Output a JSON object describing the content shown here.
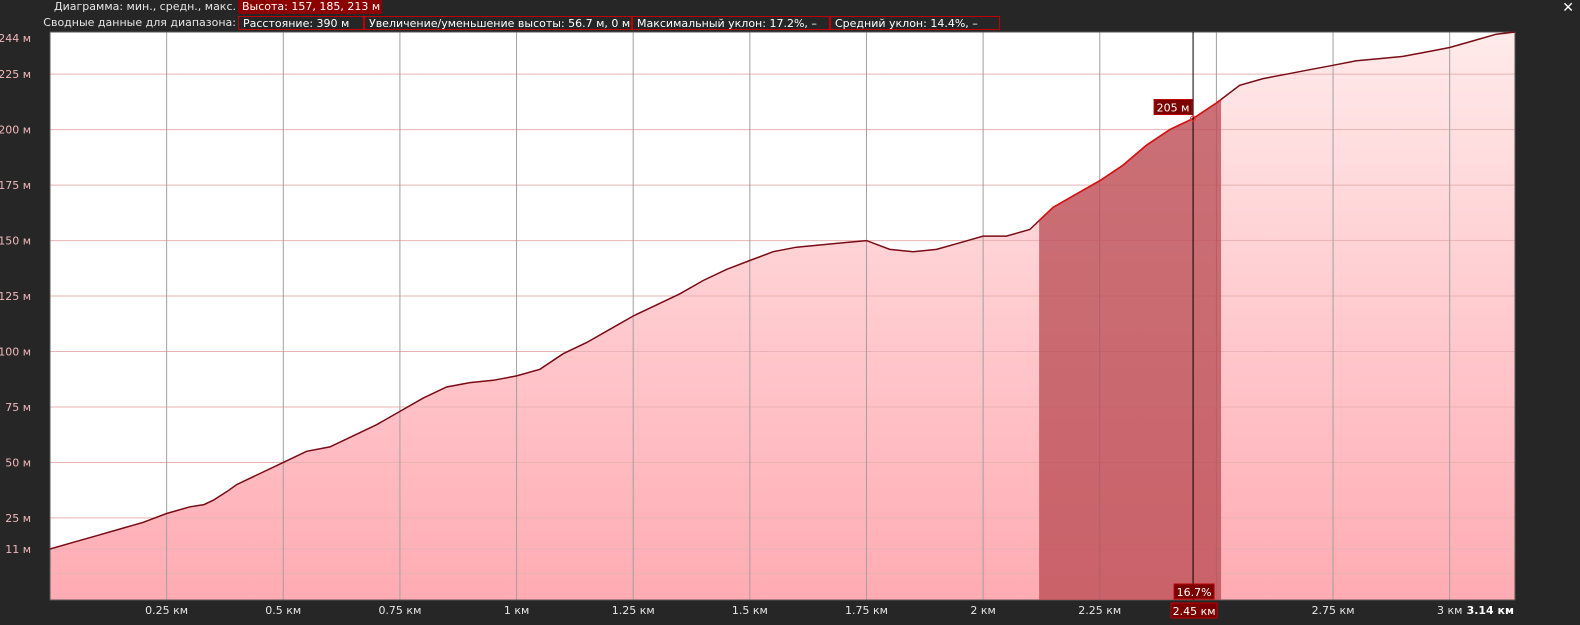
{
  "header": {
    "diagram_label": "Диаграмма: мин., средн., макс.",
    "height_summary": "Высота: 157, 185, 213 м",
    "range_label": "Сводные данные для диапазона:",
    "stats": {
      "distance": "Расстояние: 390 м",
      "elevation_change": "Увеличение/уменьшение высоты: 56.7 м, 0 м",
      "max_slope": "Максимальный уклон: 17.2%, –",
      "avg_slope": "Средний уклон: 14.4%, –"
    },
    "close_glyph": "✕"
  },
  "cursor": {
    "distance_label": "2.45 км",
    "elevation_label": "205 м",
    "slope_label": "16.7%"
  },
  "chart_data": {
    "type": "area",
    "xlabel": "",
    "ylabel": "",
    "x_unit": "км",
    "y_unit": "м",
    "xlim": [
      0,
      3.14
    ],
    "end_label": "3.14 км",
    "x_ticks": [
      {
        "value": 0.25,
        "label": "0.25 км"
      },
      {
        "value": 0.5,
        "label": "0.5 км"
      },
      {
        "value": 0.75,
        "label": "0.75 км"
      },
      {
        "value": 1.0,
        "label": "1 км"
      },
      {
        "value": 1.25,
        "label": "1.25 км"
      },
      {
        "value": 1.5,
        "label": "1.5 км"
      },
      {
        "value": 1.75,
        "label": "1.75 км"
      },
      {
        "value": 2.0,
        "label": "2 км"
      },
      {
        "value": 2.25,
        "label": "2.25 км"
      },
      {
        "value": 2.5,
        "label": "2.5 км"
      },
      {
        "value": 2.75,
        "label": "2.75 км"
      },
      {
        "value": 3.0,
        "label": "3 км"
      }
    ],
    "y_ticks": [
      {
        "value": 0,
        "label": ""
      },
      {
        "value": 11,
        "label": "11 м"
      },
      {
        "value": 25,
        "label": "25 м"
      },
      {
        "value": 50,
        "label": "50 м"
      },
      {
        "value": 75,
        "label": "75 м"
      },
      {
        "value": 100,
        "label": "100 м"
      },
      {
        "value": 125,
        "label": "125 м"
      },
      {
        "value": 150,
        "label": "150 м"
      },
      {
        "value": 175,
        "label": "175 м"
      },
      {
        "value": 200,
        "label": "200 м"
      },
      {
        "value": 225,
        "label": "225 м"
      },
      {
        "value": 244,
        "label": "244 м"
      }
    ],
    "ylim": [
      -12,
      244
    ],
    "grid": true,
    "selected_range": [
      2.12,
      2.51
    ],
    "cursor_x": 2.45,
    "cursor_y": 205,
    "colors": {
      "line": "#7a0a14",
      "selected_line": "#dd1111",
      "fill_top": "#ffeaea",
      "fill_bottom": "#ffabb3",
      "selection": "#b84a52",
      "label_bg": "#7a0000"
    },
    "series": [
      {
        "x": [
          0.0,
          0.05,
          0.1,
          0.15,
          0.2,
          0.25,
          0.3,
          0.33,
          0.35,
          0.38,
          0.4,
          0.45,
          0.5,
          0.55,
          0.6,
          0.65,
          0.7,
          0.75,
          0.8,
          0.85,
          0.9,
          0.95,
          1.0,
          1.05,
          1.1,
          1.15,
          1.2,
          1.25,
          1.3,
          1.35,
          1.4,
          1.45,
          1.5,
          1.55,
          1.6,
          1.65,
          1.7,
          1.75,
          1.8,
          1.85,
          1.9,
          1.95,
          2.0,
          2.05,
          2.1,
          2.15,
          2.2,
          2.25,
          2.3,
          2.35,
          2.4,
          2.45,
          2.5,
          2.55,
          2.6,
          2.65,
          2.7,
          2.75,
          2.8,
          2.85,
          2.9,
          2.95,
          3.0,
          3.05,
          3.1,
          3.14
        ],
        "y": [
          11,
          14,
          17,
          20,
          23,
          27,
          30,
          31,
          33,
          37,
          40,
          45,
          50,
          55,
          57,
          62,
          67,
          73,
          79,
          84,
          86,
          87,
          89,
          92,
          99,
          104,
          110,
          116,
          121,
          126,
          132,
          137,
          141,
          145,
          147,
          148,
          149,
          150,
          146,
          145,
          146,
          149,
          152,
          152,
          155,
          165,
          171,
          177,
          184,
          193,
          200,
          205,
          212,
          220,
          223,
          225,
          227,
          229,
          231,
          232,
          233,
          235,
          237,
          240,
          243,
          244
        ]
      }
    ]
  }
}
